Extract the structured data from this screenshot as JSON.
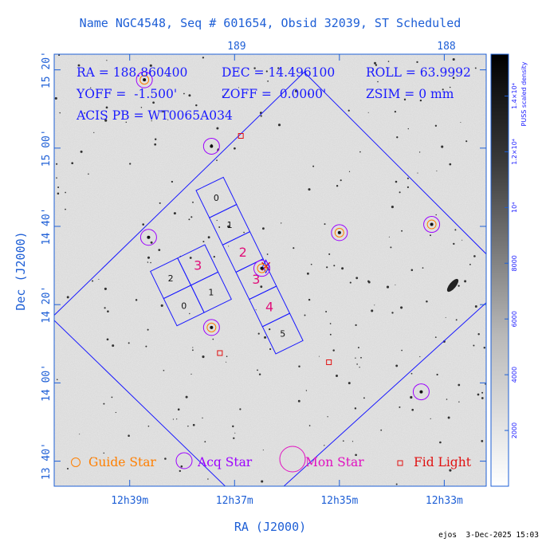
{
  "title": "Name NGC4548, Seq # 601654, Obsid 32039, ST Scheduled",
  "info": {
    "ra": "RA = 188.860400",
    "dec": "DEC = 14.496100",
    "roll": "ROLL = 63.9992",
    "yoff": "YOFF =  -1.500'",
    "zoff": "ZOFF =  0.0000'",
    "zsim": "ZSIM = 0 mm",
    "acis": "ACIS PB = WT0065A034"
  },
  "axes": {
    "xlabel": "RA (J2000)",
    "ylabel": "Dec (J2000)",
    "x_ticks": [
      "12h39m",
      "12h37m",
      "12h35m",
      "12h33m"
    ],
    "y_ticks": [
      "15 20'",
      "15 00'",
      "14 40'",
      "14 20'",
      "14 00'",
      "13 40'"
    ],
    "top_ticks": [
      "189",
      "188"
    ]
  },
  "colorbar": {
    "label": "PUSS scaled density",
    "ticks": [
      "2000",
      "4000",
      "6000",
      "8000",
      "10⁴",
      "1.2×10⁴",
      "1.4×10⁴"
    ],
    "levels": [
      2000,
      4000,
      6000,
      8000,
      10000,
      12000,
      14000
    ],
    "max": 15500
  },
  "chart_data": {
    "type": "scatter",
    "title": "Name NGC4548, Seq # 601654, Obsid 32039, ST Scheduled",
    "xlabel": "RA (J2000)",
    "ylabel": "Dec (J2000)",
    "x_unit": "deg RA",
    "y_unit": "deg Dec",
    "xlim": [
      189.87,
      187.81
    ],
    "ylim": [
      13.56,
      15.4
    ],
    "field_center": [
      188.8604,
      14.4961
    ],
    "roll_deg": 63.9992,
    "ccd_labels_i": [
      "0",
      "1",
      "2",
      "3"
    ],
    "ccd_labels_s": [
      "0",
      "1",
      "2",
      "3",
      "4",
      "5"
    ],
    "guide_stars": [
      {
        "ra": 189.44,
        "dec": 15.291
      },
      {
        "ra": 188.51,
        "dec": 14.64
      },
      {
        "ra": 188.07,
        "dec": 14.675
      },
      {
        "ra": 188.88,
        "dec": 14.488
      },
      {
        "ra": 189.12,
        "dec": 14.236
      }
    ],
    "acq_stars": [
      {
        "ra": 189.44,
        "dec": 15.291
      },
      {
        "ra": 189.42,
        "dec": 14.62
      },
      {
        "ra": 189.12,
        "dec": 15.008
      },
      {
        "ra": 188.51,
        "dec": 14.64
      },
      {
        "ra": 188.07,
        "dec": 14.675
      },
      {
        "ra": 188.88,
        "dec": 14.488
      },
      {
        "ra": 189.12,
        "dec": 14.236
      },
      {
        "ra": 188.12,
        "dec": 13.962
      }
    ],
    "fid_lights": [
      {
        "ra": 188.98,
        "dec": 15.052
      },
      {
        "ra": 189.08,
        "dec": 14.127
      },
      {
        "ra": 188.56,
        "dec": 14.088
      }
    ]
  },
  "legend": {
    "guide": "Guide Star",
    "acq": "Acq Star",
    "mon": "Mon Star",
    "fid": "Fid Light"
  },
  "colors": {
    "axis": "#1e5fd6",
    "field": "#1a1aff",
    "guide": "#ff7f00",
    "acq": "#9c00ff",
    "mon": "#e010c0",
    "fid": "#e01010"
  },
  "footer": "ejos  3-Dec-2025 15:03"
}
